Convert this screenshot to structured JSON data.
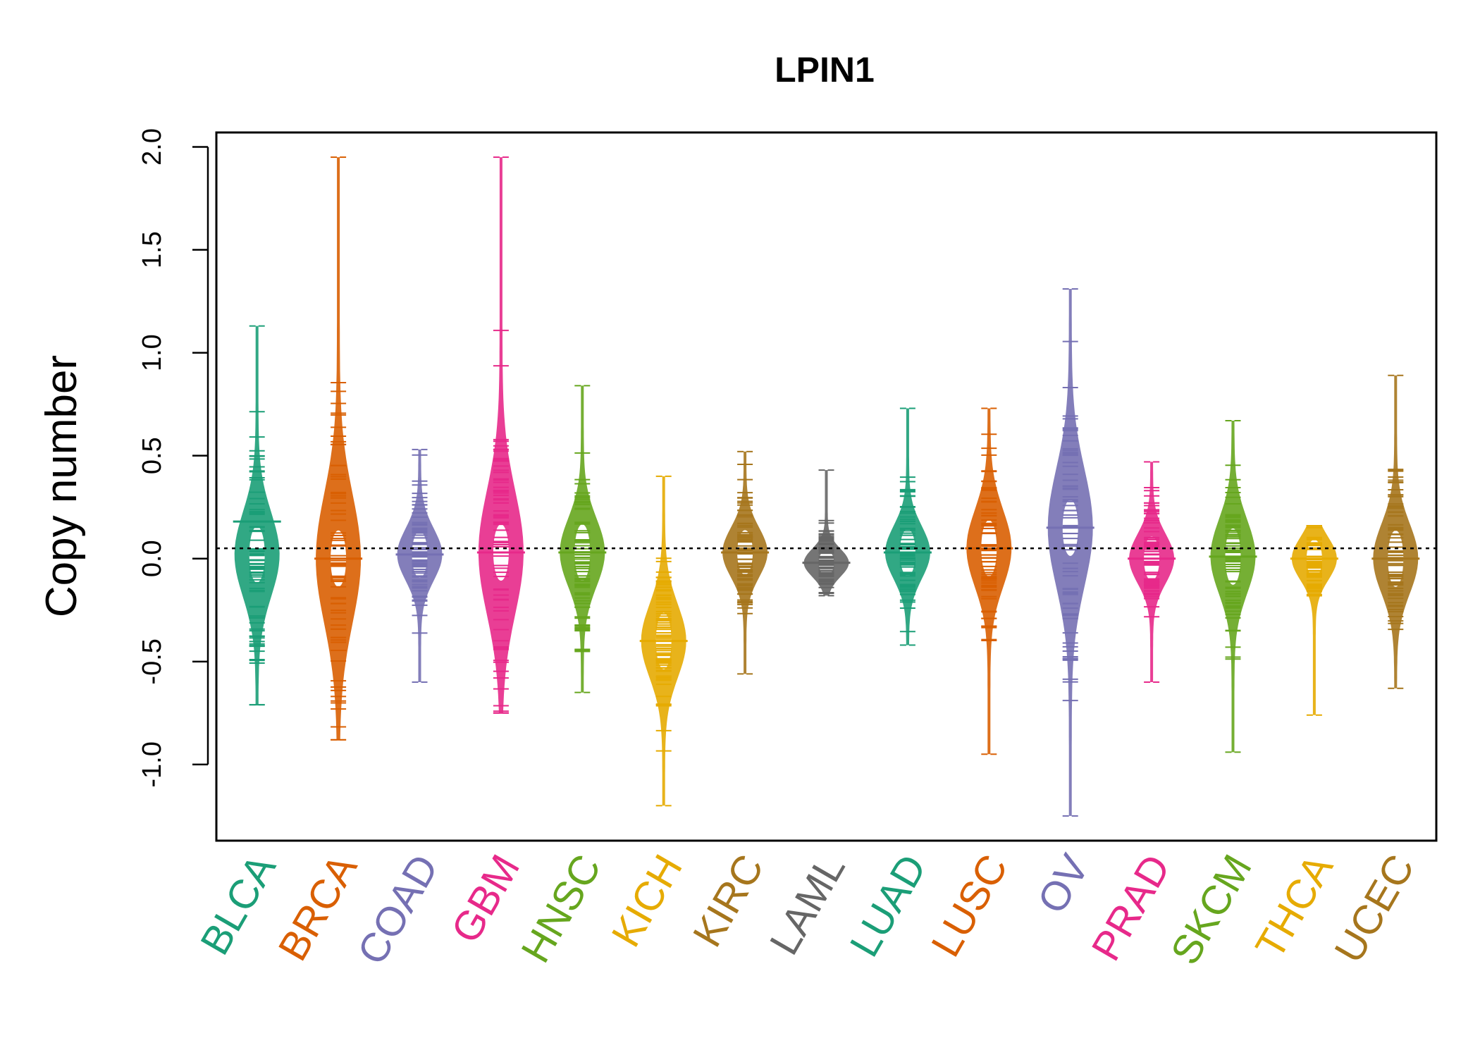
{
  "chart_data": {
    "type": "beanplot",
    "title": "LPIN1",
    "xlabel": "",
    "ylabel": "Copy number",
    "ylim": [
      -1.37,
      2.07
    ],
    "y_ticks": [
      "-1.0",
      "-0.5",
      "0.0",
      "0.5",
      "1.0",
      "1.5",
      "2.0"
    ],
    "y_tick_values": [
      -1.0,
      -0.5,
      0.0,
      0.5,
      1.0,
      1.5,
      2.0
    ],
    "reference_line": 0.05,
    "grid": false,
    "legend": "none",
    "categories": [
      "BLCA",
      "BRCA",
      "COAD",
      "GBM",
      "HNSC",
      "KICH",
      "KIRC",
      "LAML",
      "LUAD",
      "LUSC",
      "OV",
      "PRAD",
      "SKCM",
      "THCA",
      "UCEC"
    ],
    "colors": [
      "#1b9e77",
      "#d95f02",
      "#7570b3",
      "#e7298a",
      "#66a61e",
      "#e6ab02",
      "#a6761d",
      "#666666",
      "#1b9e77",
      "#d95f02",
      "#7570b3",
      "#e7298a",
      "#66a61e",
      "#e6ab02",
      "#a6761d"
    ],
    "series": [
      {
        "category": "BLCA",
        "mean": 0.18,
        "median": 0.02,
        "min": -0.71,
        "max": 1.13
      },
      {
        "category": "BRCA",
        "mean": 0.0,
        "median": 0.0,
        "min": -0.88,
        "max": 1.95
      },
      {
        "category": "COAD",
        "mean": 0.02,
        "median": 0.02,
        "min": -0.6,
        "max": 0.53
      },
      {
        "category": "GBM",
        "mean": 0.03,
        "median": 0.03,
        "min": -0.75,
        "max": 1.95
      },
      {
        "category": "HNSC",
        "mean": 0.03,
        "median": 0.03,
        "min": -0.65,
        "max": 0.84
      },
      {
        "category": "KICH",
        "mean": -0.4,
        "median": -0.4,
        "min": -1.2,
        "max": 0.4
      },
      {
        "category": "KIRC",
        "mean": 0.03,
        "median": 0.03,
        "min": -0.56,
        "max": 0.52
      },
      {
        "category": "LAML",
        "mean": -0.02,
        "median": -0.02,
        "min": -0.18,
        "max": 0.43
      },
      {
        "category": "LUAD",
        "mean": 0.03,
        "median": 0.03,
        "min": -0.42,
        "max": 0.73
      },
      {
        "category": "LUSC",
        "mean": 0.05,
        "median": 0.05,
        "min": -0.95,
        "max": 0.73
      },
      {
        "category": "OV",
        "mean": 0.15,
        "median": 0.15,
        "min": -1.25,
        "max": 1.31
      },
      {
        "category": "PRAD",
        "mean": 0.0,
        "median": 0.0,
        "min": -0.6,
        "max": 0.47
      },
      {
        "category": "SKCM",
        "mean": 0.01,
        "median": 0.01,
        "min": -0.94,
        "max": 0.67
      },
      {
        "category": "THCA",
        "mean": 0.0,
        "median": 0.0,
        "min": -0.76,
        "max": 0.16
      },
      {
        "category": "UCEC",
        "mean": 0.0,
        "median": 0.0,
        "min": -0.63,
        "max": 0.89
      }
    ]
  }
}
